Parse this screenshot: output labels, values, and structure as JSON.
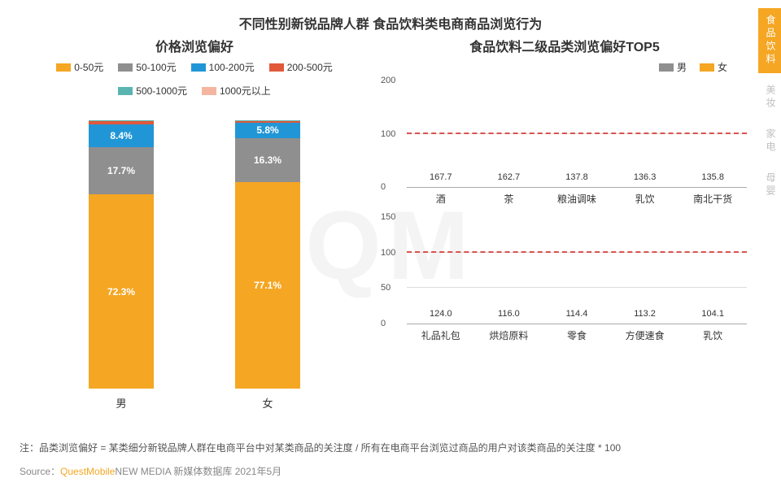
{
  "title": "不同性别新锐品牌人群 食品饮料类电商商品浏览行为",
  "watermark": "QM",
  "left": {
    "subtitle": "价格浏览偏好",
    "legend": [
      {
        "label": "0-50元",
        "color": "#f5a623"
      },
      {
        "label": "50-100元",
        "color": "#8f8f8f"
      },
      {
        "label": "100-200元",
        "color": "#2196d6"
      },
      {
        "label": "200-500元",
        "color": "#e1593a"
      },
      {
        "label": "500-1000元",
        "color": "#5ab5b0"
      },
      {
        "label": "1000元以上",
        "color": "#f4b6a0"
      }
    ],
    "categories": [
      "男",
      "女"
    ],
    "series": [
      {
        "key": "0-50元",
        "color": "#f5a623",
        "values": [
          72.3,
          77.1
        ],
        "show_label": true
      },
      {
        "key": "50-100元",
        "color": "#8f8f8f",
        "values": [
          17.7,
          16.3
        ],
        "show_label": true
      },
      {
        "key": "100-200元",
        "color": "#2196d6",
        "values": [
          8.4,
          5.8
        ],
        "show_label": true
      },
      {
        "key": "200-500元",
        "color": "#e1593a",
        "values": [
          1.2,
          0.6
        ],
        "show_label": false
      },
      {
        "key": "500-1000元",
        "color": "#5ab5b0",
        "values": [
          0.3,
          0.1
        ],
        "show_label": false
      },
      {
        "key": "1000元以上",
        "color": "#f4b6a0",
        "values": [
          0.1,
          0.1
        ],
        "show_label": false
      }
    ],
    "label_fontsize": 12,
    "value_suffix": "%"
  },
  "right": {
    "subtitle": "食品饮料二级品类浏览偏好TOP5",
    "legend": [
      {
        "label": "男",
        "color": "#8f8f8f"
      },
      {
        "label": "女",
        "color": "#f5a623"
      }
    ],
    "charts": [
      {
        "color": "#8f8f8f",
        "ymax": 200,
        "ytick_step": 100,
        "reference_line": 100,
        "categories": [
          "酒",
          "茶",
          "粮油调味",
          "乳饮",
          "南北干货"
        ],
        "values": [
          167.7,
          162.7,
          137.8,
          136.3,
          135.8
        ]
      },
      {
        "color": "#f5a623",
        "ymax": 150,
        "ytick_step": 50,
        "reference_line": 100,
        "categories": [
          "礼品礼包",
          "烘焙原料",
          "零食",
          "方便速食",
          "乳饮"
        ],
        "values": [
          124.0,
          116.0,
          114.4,
          113.2,
          104.1
        ]
      }
    ],
    "reference_line_color": "#d9534f",
    "grid_color": "#dddddd"
  },
  "footer": {
    "note": "注：品类浏览偏好 = 某类细分新锐品牌人群在电商平台中对某类商品的关注度 / 所有在电商平台浏览过商品的用户对该类商品的关注度 * 100",
    "source_prefix": "Source：",
    "source_brand": "QuestMobile",
    "source_rest": "NEW MEDIA 新媒体数据库 2021年5月"
  },
  "sidetabs": [
    {
      "label": "食品饮料",
      "active": true
    },
    {
      "label": "美妆",
      "active": false
    },
    {
      "label": "家电",
      "active": false
    },
    {
      "label": "母婴",
      "active": false
    }
  ]
}
